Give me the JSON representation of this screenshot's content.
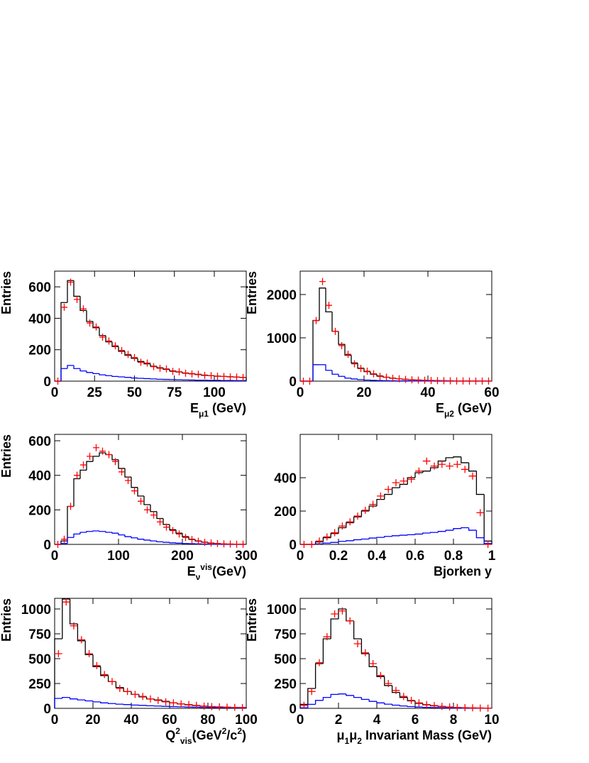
{
  "chart_data": [
    {
      "type": "histogram",
      "ylabel": "Entries",
      "xlabel": [
        {
          "text": "E"
        },
        {
          "text": "μ1",
          "shift": "sub"
        },
        {
          "text": " (GeV)"
        }
      ],
      "bins": [
        0,
        4,
        8,
        12,
        16,
        20,
        24,
        28,
        32,
        36,
        40,
        44,
        48,
        52,
        56,
        60,
        64,
        68,
        72,
        76,
        80,
        84,
        88,
        92,
        96,
        100,
        104,
        108,
        112,
        116,
        120
      ],
      "xlim": [
        0,
        120
      ],
      "ylim": [
        0,
        700
      ],
      "xticks": [
        0,
        25,
        50,
        75,
        100
      ],
      "yticks": [
        0,
        200,
        400,
        600
      ],
      "series": [
        {
          "color": "#000000",
          "style": "step",
          "values": [
            0,
            500,
            640,
            540,
            450,
            380,
            340,
            290,
            250,
            220,
            190,
            165,
            145,
            125,
            110,
            95,
            85,
            75,
            65,
            58,
            52,
            48,
            42,
            38,
            35,
            32,
            30,
            28,
            26,
            24
          ]
        },
        {
          "color": "#0000ff",
          "style": "step",
          "values": [
            0,
            80,
            100,
            80,
            65,
            55,
            48,
            40,
            35,
            30,
            27,
            24,
            20,
            18,
            16,
            14,
            12,
            11,
            10,
            9,
            8,
            7,
            6,
            6,
            5,
            5,
            4,
            4,
            3,
            3
          ]
        },
        {
          "color": "#ff0000",
          "style": "points",
          "values": [
            0,
            470,
            630,
            520,
            460,
            370,
            345,
            280,
            255,
            225,
            195,
            170,
            150,
            120,
            115,
            92,
            82,
            78,
            62,
            60,
            50,
            46,
            44,
            36,
            35,
            31,
            30,
            27,
            26,
            23
          ]
        }
      ]
    },
    {
      "type": "histogram",
      "ylabel": "Entries",
      "xlabel": [
        {
          "text": "E"
        },
        {
          "text": "μ2",
          "shift": "sub"
        },
        {
          "text": " (GeV)"
        }
      ],
      "bins": [
        0,
        2,
        4,
        6,
        8,
        10,
        12,
        14,
        16,
        18,
        20,
        22,
        24,
        26,
        28,
        30,
        32,
        34,
        36,
        38,
        40,
        42,
        44,
        46,
        48,
        50,
        52,
        54,
        56,
        58,
        60
      ],
      "xlim": [
        0,
        60
      ],
      "ylim": [
        0,
        2540
      ],
      "xticks": [
        0,
        20,
        40,
        60
      ],
      "yticks": [
        0,
        1000,
        2000
      ],
      "series": [
        {
          "color": "#000000",
          "style": "step",
          "values": [
            0,
            0,
            1400,
            2150,
            1600,
            1150,
            850,
            600,
            420,
            300,
            220,
            160,
            120,
            90,
            70,
            55,
            42,
            33,
            26,
            20,
            16,
            13,
            10,
            8,
            6,
            5,
            4,
            3,
            2,
            2
          ]
        },
        {
          "color": "#0000ff",
          "style": "step",
          "values": [
            0,
            0,
            380,
            380,
            250,
            160,
            110,
            70,
            50,
            35,
            25,
            18,
            13,
            10,
            8,
            6,
            5,
            4,
            3,
            2,
            2,
            1,
            1,
            1,
            1,
            0,
            0,
            0,
            0,
            0
          ]
        },
        {
          "color": "#ff0000",
          "style": "points",
          "values": [
            0,
            0,
            1400,
            2300,
            1750,
            1150,
            820,
            620,
            400,
            290,
            230,
            170,
            110,
            90,
            65,
            55,
            40,
            30,
            25,
            20,
            15,
            12,
            10,
            8,
            5,
            5,
            3,
            3,
            2,
            2
          ]
        }
      ]
    },
    {
      "type": "histogram",
      "ylabel": "Entries",
      "xlabel": [
        {
          "text": "E"
        },
        {
          "text": "ν",
          "shift": "sub"
        },
        {
          "text": "vis",
          "shift": "sup"
        },
        {
          "text": "(GeV)"
        }
      ],
      "bins": [
        0,
        10,
        20,
        30,
        40,
        50,
        60,
        70,
        80,
        90,
        100,
        110,
        120,
        130,
        140,
        150,
        160,
        170,
        180,
        190,
        200,
        210,
        220,
        230,
        240,
        250,
        260,
        270,
        280,
        290,
        300
      ],
      "xlim": [
        0,
        300
      ],
      "ylim": [
        0,
        637
      ],
      "xticks": [
        0,
        100,
        200,
        300
      ],
      "yticks": [
        0,
        200,
        400,
        600
      ],
      "series": [
        {
          "color": "#000000",
          "style": "step",
          "values": [
            0,
            20,
            220,
            380,
            430,
            480,
            510,
            530,
            520,
            490,
            440,
            390,
            330,
            280,
            230,
            190,
            150,
            115,
            85,
            65,
            45,
            30,
            20,
            13,
            8,
            5,
            3,
            2,
            1,
            1
          ]
        },
        {
          "color": "#0000ff",
          "style": "step",
          "values": [
            0,
            5,
            40,
            60,
            70,
            75,
            78,
            75,
            70,
            65,
            55,
            45,
            38,
            30,
            25,
            20,
            15,
            12,
            9,
            7,
            5,
            4,
            3,
            2,
            1,
            1,
            0,
            0,
            0,
            0
          ]
        },
        {
          "color": "#ff0000",
          "style": "points",
          "values": [
            0,
            30,
            220,
            400,
            460,
            510,
            560,
            540,
            520,
            480,
            420,
            370,
            310,
            250,
            200,
            170,
            130,
            100,
            80,
            60,
            40,
            28,
            18,
            12,
            8,
            5,
            3,
            2,
            1,
            1
          ]
        }
      ]
    },
    {
      "type": "histogram",
      "ylabel": "",
      "xlabel": [
        {
          "text": "Bjorken y"
        }
      ],
      "bins": [
        0,
        0.04,
        0.08,
        0.12,
        0.16,
        0.2,
        0.24,
        0.28,
        0.32,
        0.36,
        0.4,
        0.44,
        0.48,
        0.52,
        0.56,
        0.6,
        0.64,
        0.68,
        0.72,
        0.76,
        0.8,
        0.84,
        0.88,
        0.92,
        0.96,
        1
      ],
      "xlim": [
        0,
        1
      ],
      "ylim": [
        0,
        660
      ],
      "xticks": [
        0,
        0.2,
        0.4,
        0.6,
        0.8,
        1
      ],
      "yticks": [
        0,
        200,
        400
      ],
      "series": [
        {
          "color": "#000000",
          "style": "step",
          "values": [
            0,
            0,
            15,
            40,
            65,
            100,
            130,
            165,
            200,
            230,
            270,
            300,
            340,
            360,
            400,
            430,
            440,
            460,
            500,
            520,
            525,
            490,
            440,
            300,
            20
          ]
        },
        {
          "color": "#0000ff",
          "style": "step",
          "values": [
            0,
            0,
            3,
            8,
            12,
            18,
            22,
            28,
            32,
            38,
            42,
            48,
            52,
            55,
            58,
            62,
            68,
            72,
            78,
            85,
            95,
            100,
            85,
            40,
            5
          ]
        },
        {
          "color": "#ff0000",
          "style": "points",
          "values": [
            0,
            0,
            20,
            45,
            70,
            110,
            135,
            170,
            205,
            240,
            290,
            330,
            370,
            380,
            390,
            440,
            500,
            470,
            480,
            470,
            480,
            450,
            410,
            190,
            0
          ]
        }
      ]
    },
    {
      "type": "histogram",
      "ylabel": "Entries",
      "xlabel": [
        {
          "text": "Q"
        },
        {
          "text": "2",
          "shift": "sup"
        },
        {
          "text": "vis",
          "shift": "sub"
        },
        {
          "text": "(GeV"
        },
        {
          "text": "2",
          "shift": "sup"
        },
        {
          "text": "/c"
        },
        {
          "text": "2",
          "shift": "sup"
        },
        {
          "text": ")"
        }
      ],
      "bins": [
        0,
        4,
        8,
        12,
        16,
        20,
        24,
        28,
        32,
        36,
        40,
        44,
        48,
        52,
        56,
        60,
        64,
        68,
        72,
        76,
        80,
        84,
        88,
        92,
        96,
        100
      ],
      "xlim": [
        0,
        100
      ],
      "ylim": [
        0,
        1107
      ],
      "xticks": [
        0,
        20,
        40,
        60,
        80,
        100
      ],
      "yticks": [
        0,
        250,
        500,
        750,
        1000
      ],
      "series": [
        {
          "color": "#000000",
          "style": "step",
          "values": [
            700,
            1100,
            850,
            680,
            540,
            420,
            330,
            270,
            210,
            170,
            140,
            115,
            95,
            85,
            70,
            55,
            45,
            35,
            28,
            22,
            18,
            14,
            12,
            9,
            8
          ]
        },
        {
          "color": "#0000ff",
          "style": "step",
          "values": [
            100,
            110,
            95,
            85,
            75,
            65,
            55,
            48,
            42,
            38,
            33,
            30,
            26,
            23,
            20,
            17,
            15,
            13,
            11,
            9,
            8,
            7,
            6,
            5,
            4
          ]
        },
        {
          "color": "#ff0000",
          "style": "points",
          "values": [
            550,
            1070,
            830,
            690,
            550,
            430,
            340,
            270,
            200,
            170,
            140,
            120,
            95,
            80,
            65,
            55,
            45,
            38,
            30,
            22,
            18,
            15,
            12,
            10,
            8
          ]
        }
      ]
    },
    {
      "type": "histogram",
      "ylabel": "Entries",
      "xlabel": [
        {
          "text": "μ"
        },
        {
          "text": "1",
          "shift": "sub"
        },
        {
          "text": "μ"
        },
        {
          "text": "2",
          "shift": "sub"
        },
        {
          "text": " Invariant Mass (GeV)"
        }
      ],
      "bins": [
        0,
        0.4,
        0.8,
        1.2,
        1.6,
        2,
        2.4,
        2.8,
        3.2,
        3.6,
        4,
        4.4,
        4.8,
        5.2,
        5.6,
        6,
        6.4,
        6.8,
        7.2,
        7.6,
        8,
        8.4,
        8.8,
        9.2,
        9.6,
        10
      ],
      "xlim": [
        0,
        10
      ],
      "ylim": [
        0,
        1107
      ],
      "xticks": [
        0,
        2,
        4,
        6,
        8,
        10
      ],
      "yticks": [
        0,
        250,
        500,
        750,
        1000
      ],
      "series": [
        {
          "color": "#000000",
          "style": "step",
          "values": [
            40,
            200,
            450,
            700,
            900,
            1000,
            880,
            700,
            550,
            420,
            320,
            230,
            160,
            110,
            75,
            50,
            35,
            25,
            18,
            12,
            9,
            6,
            4,
            3,
            2
          ]
        },
        {
          "color": "#0000ff",
          "style": "step",
          "values": [
            5,
            40,
            80,
            110,
            140,
            145,
            130,
            110,
            90,
            70,
            55,
            42,
            32,
            24,
            18,
            13,
            10,
            8,
            6,
            4,
            3,
            2,
            2,
            1,
            1
          ]
        },
        {
          "color": "#ff0000",
          "style": "points",
          "values": [
            30,
            170,
            460,
            720,
            950,
            980,
            880,
            650,
            560,
            450,
            330,
            250,
            180,
            120,
            80,
            55,
            38,
            28,
            20,
            14,
            10,
            7,
            5,
            3,
            2
          ]
        }
      ]
    }
  ]
}
